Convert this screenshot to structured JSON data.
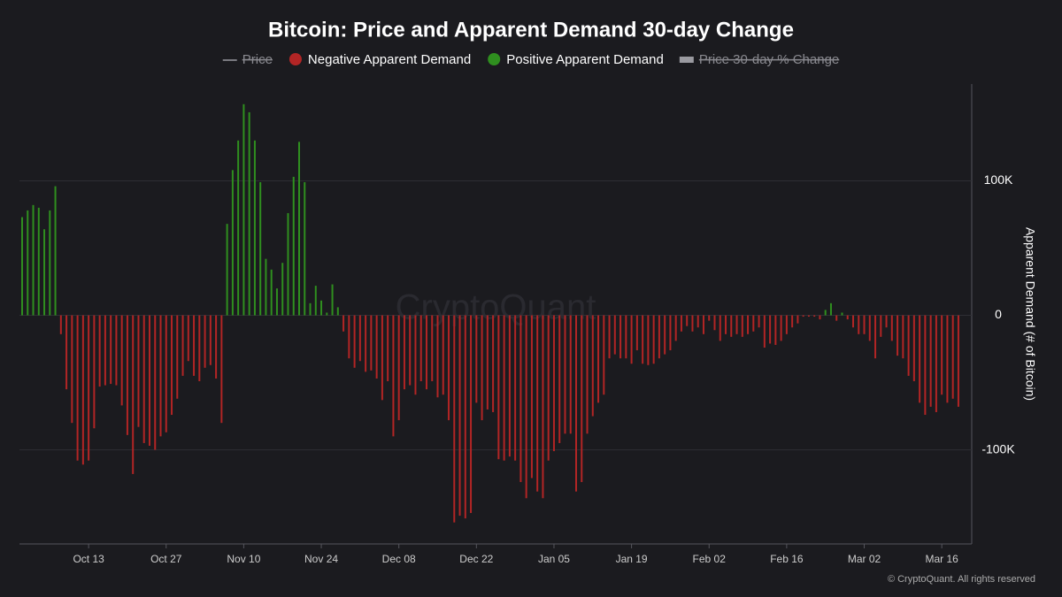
{
  "chart_data": {
    "type": "bar",
    "title": "Bitcoin: Price and Apparent Demand 30-day Change",
    "y_label": "Apparent Demand (# of Bitcoin)",
    "watermark": "CryptoQuant",
    "footer": "© CryptoQuant. All rights reserved",
    "legend": [
      {
        "name": "Price",
        "color": "#9a9aa0",
        "hidden": true,
        "marker": "line"
      },
      {
        "name": "Negative Apparent Demand",
        "color": "#b22525",
        "hidden": false,
        "marker": "dot"
      },
      {
        "name": "Positive Apparent Demand",
        "color": "#2f8f1f",
        "hidden": false,
        "marker": "dot"
      },
      {
        "name": "Price 30-day % Change",
        "color": "#9a9aa0",
        "hidden": true,
        "marker": "bar"
      }
    ],
    "categories": [
      null,
      null,
      null,
      null,
      null,
      null,
      null,
      null,
      null,
      null,
      null,
      null,
      "Oct 13",
      null,
      null,
      null,
      null,
      null,
      null,
      null,
      null,
      null,
      null,
      null,
      null,
      null,
      "Oct 27",
      null,
      null,
      null,
      null,
      null,
      null,
      null,
      null,
      null,
      null,
      null,
      null,
      null,
      "Nov 10",
      null,
      null,
      null,
      null,
      null,
      null,
      null,
      null,
      null,
      null,
      null,
      null,
      null,
      "Nov 24",
      null,
      null,
      null,
      null,
      null,
      null,
      null,
      null,
      null,
      null,
      null,
      null,
      null,
      "Dec 08",
      null,
      null,
      null,
      null,
      null,
      null,
      null,
      null,
      null,
      null,
      null,
      null,
      null,
      "Dec 22",
      null,
      null,
      null,
      null,
      null,
      null,
      null,
      null,
      null,
      null,
      null,
      null,
      null,
      "Jan 05",
      null,
      null,
      null,
      null,
      null,
      null,
      null,
      null,
      null,
      null,
      null,
      null,
      null,
      "Jan 19",
      null,
      null,
      null,
      null,
      null,
      null,
      null,
      null,
      null,
      null,
      null,
      null,
      null,
      "Feb 02",
      null,
      null,
      null,
      null,
      null,
      null,
      null,
      null,
      null,
      null,
      null,
      null,
      null,
      "Feb 16",
      null,
      null,
      null,
      null,
      null,
      null,
      null,
      null,
      null,
      null,
      null,
      null,
      null,
      "Mar 02",
      null,
      null,
      null,
      null,
      null,
      null,
      null,
      null,
      null,
      null,
      null,
      null,
      null,
      "Mar 16",
      null,
      null,
      null
    ],
    "values": [
      73000,
      78000,
      82000,
      80000,
      64000,
      78000,
      96000,
      -14000,
      -55000,
      -80000,
      -108000,
      -111000,
      -108000,
      -84000,
      -53000,
      -52000,
      -51000,
      -52000,
      -67000,
      -89000,
      -118000,
      -83000,
      -95000,
      -97000,
      -100000,
      -90000,
      -87000,
      -74000,
      -62000,
      -45000,
      -34000,
      -45000,
      -49000,
      -39000,
      -37000,
      -47000,
      -80000,
      68000,
      108000,
      130000,
      157000,
      151000,
      130000,
      99000,
      42000,
      34000,
      20000,
      39000,
      76000,
      103000,
      129000,
      99000,
      9000,
      22000,
      11000,
      2000,
      23000,
      6000,
      -12000,
      -32000,
      -39000,
      -34000,
      -42000,
      -41000,
      -47000,
      -63000,
      -49000,
      -90000,
      -78000,
      -55000,
      -52000,
      -59000,
      -49000,
      -55000,
      -49000,
      -61000,
      -59000,
      -78000,
      -154000,
      -149000,
      -151000,
      -147000,
      -65000,
      -78000,
      -70000,
      -72000,
      -107000,
      -108000,
      -105000,
      -108000,
      -124000,
      -136000,
      -121000,
      -131000,
      -136000,
      -108000,
      -101000,
      -95000,
      -88000,
      -88000,
      -131000,
      -124000,
      -88000,
      -75000,
      -65000,
      -59000,
      -32000,
      -29000,
      -32000,
      -32000,
      -36000,
      -26000,
      -36000,
      -37000,
      -36000,
      -32000,
      -29000,
      -26000,
      -19000,
      -12000,
      -8000,
      -12000,
      -9000,
      -14000,
      -4000,
      -11000,
      -19000,
      -14000,
      -16000,
      -14000,
      -16000,
      -14000,
      -12000,
      -9000,
      -24000,
      -21000,
      -22000,
      -19000,
      -14000,
      -9000,
      -6000,
      -1000,
      -1000,
      -1000,
      -3000,
      4000,
      9000,
      -4000,
      2000,
      -3000,
      -9000,
      -14000,
      -14000,
      -19000,
      -32000,
      -16000,
      -9000,
      -19000,
      -30000,
      -32000,
      -45000,
      -49000,
      -65000,
      -74000,
      -68000,
      -72000,
      -59000,
      -65000,
      -62000,
      -68000
    ],
    "ylim": [
      -170000,
      172000
    ],
    "yticks": [
      {
        "value": -100000,
        "label": "-100K"
      },
      0,
      {
        "value": 100000,
        "label": "100K"
      }
    ],
    "grid": true
  }
}
